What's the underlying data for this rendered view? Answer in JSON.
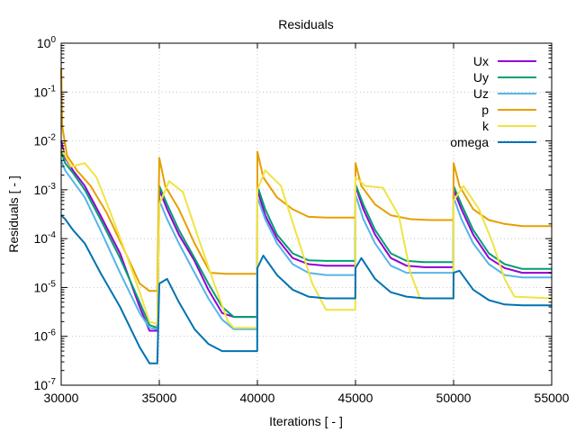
{
  "chart_data": {
    "type": "line",
    "title": "Residuals",
    "xlabel": "Iterations [ - ]",
    "ylabel": "Residuals [ - ]",
    "xlim": [
      30000,
      55000
    ],
    "ylim": [
      1e-07,
      1
    ],
    "yscale": "log",
    "grid": true,
    "legend_position": "top-right",
    "x_ticks": [
      30000,
      35000,
      40000,
      45000,
      50000,
      55000
    ],
    "x_tick_labels": [
      "30000",
      "35000",
      "40000",
      "45000",
      "50000",
      "55000"
    ],
    "y_ticks": [
      1e-07,
      1e-06,
      1e-05,
      0.0001,
      0.001,
      0.01,
      0.1,
      1
    ],
    "y_tick_labels": [
      {
        "base": "10",
        "exp": "-7"
      },
      {
        "base": "10",
        "exp": "-6"
      },
      {
        "base": "10",
        "exp": "-5"
      },
      {
        "base": "10",
        "exp": "-4"
      },
      {
        "base": "10",
        "exp": "-3"
      },
      {
        "base": "10",
        "exp": "-2"
      },
      {
        "base": "10",
        "exp": "-1"
      },
      {
        "base": "10",
        "exp": "0"
      }
    ],
    "series": [
      {
        "name": "Ux",
        "color": "#9400d3",
        "points": [
          [
            30000,
            0.01
          ],
          [
            30200,
            0.0045
          ],
          [
            30600,
            0.0025
          ],
          [
            31200,
            0.0012
          ],
          [
            32000,
            0.0003
          ],
          [
            33000,
            5e-05
          ],
          [
            34000,
            4e-06
          ],
          [
            34500,
            1.3e-06
          ],
          [
            34900,
            1.3e-06
          ],
          [
            35000,
            0.001
          ],
          [
            35400,
            0.0004
          ],
          [
            36000,
            0.00012
          ],
          [
            36800,
            3.5e-05
          ],
          [
            37500,
            9e-06
          ],
          [
            38200,
            3e-06
          ],
          [
            38800,
            2.5e-06
          ],
          [
            39990,
            2.5e-06
          ],
          [
            40000,
            0.001
          ],
          [
            40400,
            0.0003
          ],
          [
            41000,
            0.0001
          ],
          [
            41800,
            4e-05
          ],
          [
            42600,
            3e-05
          ],
          [
            43500,
            2.8e-05
          ],
          [
            44990,
            2.8e-05
          ],
          [
            45000,
            0.0012
          ],
          [
            45400,
            0.0004
          ],
          [
            46000,
            0.00012
          ],
          [
            46800,
            4e-05
          ],
          [
            47600,
            2.8e-05
          ],
          [
            48500,
            2.6e-05
          ],
          [
            49990,
            2.6e-05
          ],
          [
            50000,
            0.001
          ],
          [
            50400,
            0.0004
          ],
          [
            51000,
            0.00012
          ],
          [
            51800,
            4e-05
          ],
          [
            52600,
            2.5e-05
          ],
          [
            53500,
            2e-05
          ],
          [
            55000,
            2e-05
          ]
        ]
      },
      {
        "name": "Uy",
        "color": "#009e73",
        "points": [
          [
            30000,
            0.006
          ],
          [
            30200,
            0.0035
          ],
          [
            30600,
            0.0022
          ],
          [
            31200,
            0.001
          ],
          [
            32000,
            0.00025
          ],
          [
            33000,
            4e-05
          ],
          [
            34000,
            5e-06
          ],
          [
            34500,
            1.7e-06
          ],
          [
            34900,
            1.5e-06
          ],
          [
            35000,
            0.0012
          ],
          [
            35400,
            0.0005
          ],
          [
            36000,
            0.00015
          ],
          [
            36800,
            4e-05
          ],
          [
            37500,
            1.2e-05
          ],
          [
            38200,
            4e-06
          ],
          [
            38800,
            2.5e-06
          ],
          [
            39990,
            2.5e-06
          ],
          [
            40000,
            0.0012
          ],
          [
            40400,
            0.0004
          ],
          [
            41000,
            0.00012
          ],
          [
            41800,
            5e-05
          ],
          [
            42600,
            3.6e-05
          ],
          [
            43500,
            3.5e-05
          ],
          [
            44990,
            3.5e-05
          ],
          [
            45000,
            0.0013
          ],
          [
            45400,
            0.0005
          ],
          [
            46000,
            0.00015
          ],
          [
            46800,
            5e-05
          ],
          [
            47600,
            3.5e-05
          ],
          [
            48500,
            3.3e-05
          ],
          [
            49990,
            3.3e-05
          ],
          [
            50000,
            0.0012
          ],
          [
            50400,
            0.0005
          ],
          [
            51000,
            0.00015
          ],
          [
            51800,
            5e-05
          ],
          [
            52600,
            3e-05
          ],
          [
            53500,
            2.4e-05
          ],
          [
            55000,
            2.4e-05
          ]
        ]
      },
      {
        "name": "Uz",
        "color": "#56b4e9",
        "points": [
          [
            30000,
            0.004
          ],
          [
            30200,
            0.0025
          ],
          [
            30600,
            0.0015
          ],
          [
            31200,
            0.0007
          ],
          [
            32000,
            0.00015
          ],
          [
            33000,
            2e-05
          ],
          [
            34000,
            3e-06
          ],
          [
            34500,
            1.5e-06
          ],
          [
            34900,
            1.4e-06
          ],
          [
            35000,
            0.0006
          ],
          [
            35400,
            0.00025
          ],
          [
            36000,
            8e-05
          ],
          [
            36800,
            2e-05
          ],
          [
            37500,
            6e-06
          ],
          [
            38200,
            2.2e-06
          ],
          [
            38800,
            1.4e-06
          ],
          [
            39990,
            1.4e-06
          ],
          [
            40000,
            0.0007
          ],
          [
            40400,
            0.00025
          ],
          [
            41000,
            8e-05
          ],
          [
            41800,
            3e-05
          ],
          [
            42600,
            2e-05
          ],
          [
            43500,
            1.8e-05
          ],
          [
            44990,
            1.8e-05
          ],
          [
            45000,
            0.0008
          ],
          [
            45400,
            0.00025
          ],
          [
            46000,
            8e-05
          ],
          [
            46800,
            2.8e-05
          ],
          [
            47600,
            2e-05
          ],
          [
            48500,
            2e-05
          ],
          [
            49990,
            2e-05
          ],
          [
            50000,
            0.0007
          ],
          [
            50400,
            0.00025
          ],
          [
            51000,
            8e-05
          ],
          [
            51800,
            3e-05
          ],
          [
            52600,
            1.8e-05
          ],
          [
            53500,
            1.6e-05
          ],
          [
            55000,
            1.6e-05
          ]
        ]
      },
      {
        "name": "p",
        "color": "#e69f00",
        "points": [
          [
            30000,
            0.3
          ],
          [
            30050,
            0.02
          ],
          [
            30300,
            0.005
          ],
          [
            30800,
            0.0025
          ],
          [
            31500,
            0.0012
          ],
          [
            32300,
            0.00035
          ],
          [
            33200,
            6e-05
          ],
          [
            34000,
            1.2e-05
          ],
          [
            34500,
            8.5e-06
          ],
          [
            34900,
            8.5e-06
          ],
          [
            35000,
            0.0045
          ],
          [
            35300,
            0.0012
          ],
          [
            36000,
            0.0004
          ],
          [
            36800,
            8e-05
          ],
          [
            37600,
            2e-05
          ],
          [
            38400,
            1.9e-05
          ],
          [
            39990,
            1.9e-05
          ],
          [
            40000,
            0.006
          ],
          [
            40300,
            0.0018
          ],
          [
            41000,
            0.0007
          ],
          [
            41800,
            0.0004
          ],
          [
            42600,
            0.00028
          ],
          [
            43500,
            0.00027
          ],
          [
            44990,
            0.00027
          ],
          [
            45000,
            0.0035
          ],
          [
            45300,
            0.0012
          ],
          [
            46000,
            0.0005
          ],
          [
            46800,
            0.0003
          ],
          [
            47800,
            0.00025
          ],
          [
            48800,
            0.00024
          ],
          [
            49990,
            0.00024
          ],
          [
            50000,
            0.0035
          ],
          [
            50300,
            0.0012
          ],
          [
            51000,
            0.0004
          ],
          [
            51800,
            0.00024
          ],
          [
            52600,
            0.0002
          ],
          [
            53500,
            0.00018
          ],
          [
            55000,
            0.00018
          ]
        ]
      },
      {
        "name": "k",
        "color": "#f0e442",
        "points": [
          [
            30000,
            0.007
          ],
          [
            30500,
            0.003
          ],
          [
            31200,
            0.0035
          ],
          [
            31800,
            0.0018
          ],
          [
            32500,
            0.00035
          ],
          [
            33300,
            5e-05
          ],
          [
            34000,
            8e-06
          ],
          [
            34500,
            2e-06
          ],
          [
            34900,
            1.8e-06
          ],
          [
            35000,
            0.0005
          ],
          [
            35500,
            0.0015
          ],
          [
            36200,
            0.0009
          ],
          [
            37000,
            0.0001
          ],
          [
            37800,
            1.2e-05
          ],
          [
            38500,
            2e-06
          ],
          [
            38800,
            1.5e-06
          ],
          [
            39990,
            1.5e-06
          ],
          [
            40000,
            0.001
          ],
          [
            40400,
            0.0025
          ],
          [
            41200,
            0.0012
          ],
          [
            42000,
            0.00012
          ],
          [
            42800,
            1.2e-05
          ],
          [
            43500,
            3.5e-06
          ],
          [
            44990,
            3.5e-06
          ],
          [
            45000,
            0.0018
          ],
          [
            45500,
            0.0012
          ],
          [
            46400,
            0.0011
          ],
          [
            47200,
            0.0003
          ],
          [
            47800,
            2e-05
          ],
          [
            48300,
            6e-06
          ],
          [
            49990,
            6e-06
          ],
          [
            50000,
            0.0006
          ],
          [
            50500,
            0.0012
          ],
          [
            51300,
            0.0004
          ],
          [
            52000,
            8e-05
          ],
          [
            52600,
            1.5e-05
          ],
          [
            53100,
            6.5e-06
          ],
          [
            55000,
            6e-06
          ]
        ]
      },
      {
        "name": "omega",
        "color": "#0072b2",
        "points": [
          [
            30000,
            0.0003
          ],
          [
            30200,
            0.00025
          ],
          [
            30600,
            0.00015
          ],
          [
            31200,
            8e-05
          ],
          [
            32000,
            2e-05
          ],
          [
            33000,
            4e-06
          ],
          [
            34000,
            6e-07
          ],
          [
            34500,
            2.8e-07
          ],
          [
            34900,
            2.8e-07
          ],
          [
            35000,
            1.2e-05
          ],
          [
            35400,
            1.5e-05
          ],
          [
            36000,
            5e-06
          ],
          [
            36800,
            1.4e-06
          ],
          [
            37500,
            7e-07
          ],
          [
            38200,
            5e-07
          ],
          [
            39990,
            5e-07
          ],
          [
            40000,
            2.5e-05
          ],
          [
            40300,
            4.5e-05
          ],
          [
            41000,
            1.8e-05
          ],
          [
            41800,
            9e-06
          ],
          [
            42600,
            6.5e-06
          ],
          [
            43500,
            6e-06
          ],
          [
            44990,
            6e-06
          ],
          [
            45000,
            2.5e-05
          ],
          [
            45300,
            4e-05
          ],
          [
            46000,
            1.5e-05
          ],
          [
            46800,
            8e-06
          ],
          [
            47600,
            6.5e-06
          ],
          [
            48500,
            6e-06
          ],
          [
            49990,
            6e-06
          ],
          [
            50000,
            2e-05
          ],
          [
            50300,
            2.2e-05
          ],
          [
            51000,
            9e-06
          ],
          [
            51800,
            5.5e-06
          ],
          [
            52600,
            4.5e-06
          ],
          [
            53500,
            4.3e-06
          ],
          [
            55000,
            4.3e-06
          ]
        ]
      }
    ]
  }
}
